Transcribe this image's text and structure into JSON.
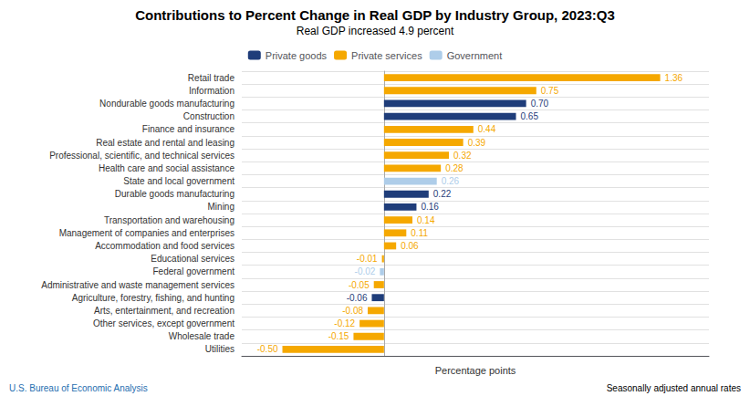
{
  "chart_data": {
    "type": "bar",
    "orientation": "horizontal",
    "title": "Contributions to Percent Change in Real GDP by Industry Group, 2023:Q3",
    "subtitle": "Real GDP increased 4.9 percent",
    "xlabel": "Percentage points",
    "annotations": [
      "U.S. Bureau of Economic Analysis",
      "Seasonally adjusted annual rates"
    ],
    "categories": [
      "Retail trade",
      "Information",
      "Nondurable goods manufacturing",
      "Construction",
      "Finance and insurance",
      "Real estate and rental and leasing",
      "Professional, scientific, and technical services",
      "Health care and social assistance",
      "State and local government",
      "Durable goods manufacturing",
      "Mining",
      "Transportation and warehousing",
      "Management of companies and enterprises",
      "Accommodation and food services",
      "Educational services",
      "Federal government",
      "Administrative and waste management services",
      "Agriculture, forestry, fishing, and hunting",
      "Arts, entertainment, and recreation",
      "Other services, except government",
      "Wholesale trade",
      "Utilities"
    ],
    "series": [
      {
        "name": "Private goods",
        "color": "#1F3D7A",
        "values": [
          null,
          null,
          0.7,
          0.65,
          null,
          null,
          null,
          null,
          null,
          0.22,
          0.16,
          null,
          null,
          null,
          null,
          null,
          null,
          -0.06,
          null,
          null,
          null,
          null
        ],
        "value_labels": [
          null,
          null,
          "0.70",
          "0.65",
          null,
          null,
          null,
          null,
          null,
          "0.22",
          "0.16",
          null,
          null,
          null,
          null,
          null,
          null,
          "-0.06",
          null,
          null,
          null,
          null
        ]
      },
      {
        "name": "Private services",
        "color": "#F5A800",
        "values": [
          1.36,
          0.75,
          null,
          null,
          0.44,
          0.39,
          0.32,
          0.28,
          null,
          null,
          null,
          0.14,
          0.11,
          0.06,
          -0.01,
          null,
          -0.05,
          null,
          -0.08,
          -0.12,
          -0.15,
          -0.5
        ],
        "value_labels": [
          "1.36",
          "0.75",
          null,
          null,
          "0.44",
          "0.39",
          "0.32",
          "0.28",
          null,
          null,
          null,
          "0.14",
          "0.11",
          "0.06",
          "-0.01",
          null,
          "-0.05",
          null,
          "-0.08",
          "-0.12",
          "-0.15",
          "-0.50"
        ]
      },
      {
        "name": "Government",
        "color": "#AECDE9",
        "values": [
          null,
          null,
          null,
          null,
          null,
          null,
          null,
          null,
          0.26,
          null,
          null,
          null,
          null,
          null,
          null,
          -0.02,
          null,
          null,
          null,
          null,
          null,
          null
        ],
        "value_labels": [
          null,
          null,
          null,
          null,
          null,
          null,
          null,
          null,
          "0.26",
          null,
          null,
          null,
          null,
          null,
          null,
          "-0.02",
          null,
          null,
          null,
          null,
          null,
          null
        ]
      }
    ],
    "xlim": [
      -0.7,
      1.6
    ],
    "tick_labels": "y",
    "data_labels": true,
    "grid": true,
    "legend": "top"
  }
}
